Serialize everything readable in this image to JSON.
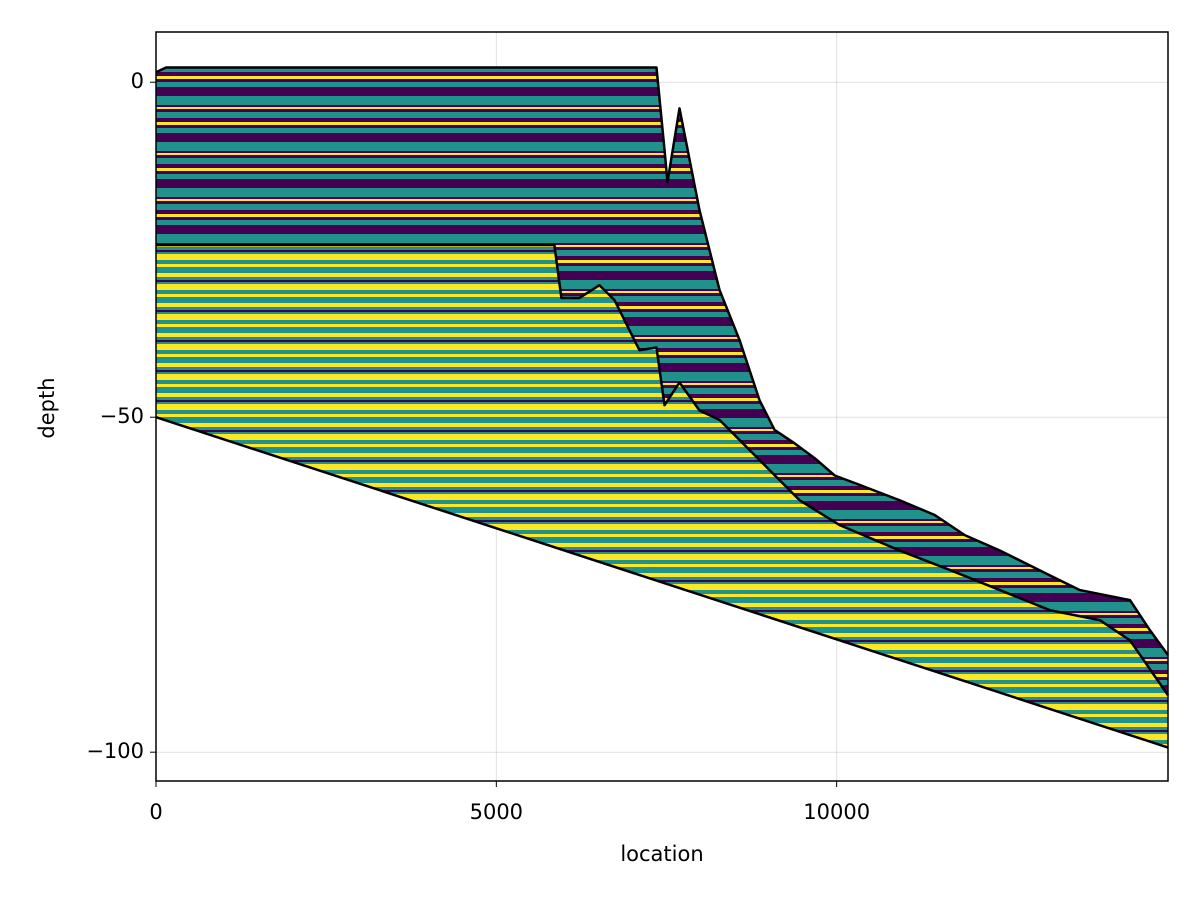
{
  "chart_data": {
    "type": "line",
    "x_label": "location",
    "y_label": "depth",
    "xlim": [
      0,
      14868
    ],
    "ylim": [
      -104.3,
      7.5
    ],
    "xticks": [
      0,
      5000,
      10000
    ],
    "yticks": [
      0,
      {
        "value": -50,
        "label": "−50"
      },
      {
        "value": -100,
        "label": "−100"
      }
    ],
    "grid": true,
    "series": [
      {
        "color": "#000000",
        "x": [
          0,
          147,
          7353,
          7471,
          7515,
          7691,
          7985,
          8279,
          8574,
          8868,
          9088,
          9382,
          9676,
          9971,
          10338,
          10926,
          11441,
          11882,
          12397,
          13132,
          13574,
          14309,
          14603,
          14868
        ],
        "values": [
          1.5,
          2.2,
          2.2,
          -10.1,
          -14.9,
          -3.9,
          -19.1,
          -31,
          -38.5,
          -47.5,
          -51.9,
          -53.9,
          -56.1,
          -58.7,
          -60.1,
          -62.4,
          -64.6,
          -67.6,
          -69.9,
          -73.6,
          -75.8,
          -77.3,
          -81.8,
          -85.5
        ]
      },
      {
        "color": "#000000",
        "x": [
          0,
          5853,
          5956,
          6221,
          6515,
          6735,
          7103,
          7353,
          7471,
          7691,
          7985,
          8279,
          8868,
          9456,
          10044,
          10926,
          11662,
          12397,
          13132,
          13868,
          14309,
          14868
        ],
        "values": [
          -24.3,
          -24.3,
          -32.2,
          -32.2,
          -30.3,
          -32.5,
          -40,
          -39.6,
          -48.2,
          -44.8,
          -49,
          -50.4,
          -56.4,
          -62.4,
          -66.1,
          -69.9,
          -72.8,
          -75.8,
          -78.8,
          -80.3,
          -83.3,
          -91.5
        ]
      },
      {
        "color": "#000000",
        "x": [
          0,
          14868
        ],
        "values": [
          -50,
          -99.3
        ]
      }
    ]
  }
}
